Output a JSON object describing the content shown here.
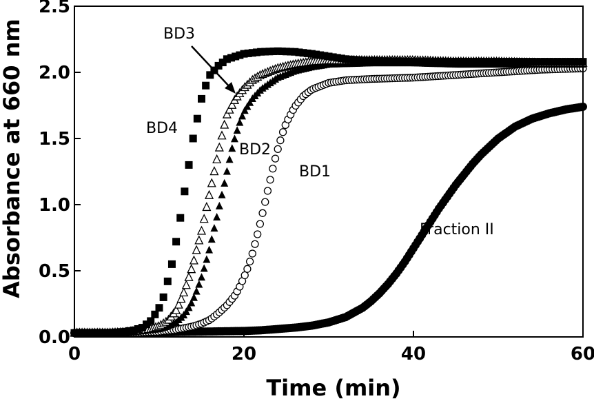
{
  "chart_data": {
    "type": "scatter",
    "xlabel": "Time (min)",
    "ylabel": "Absorbance at 660 nm",
    "xlim": [
      0,
      60
    ],
    "ylim": [
      0,
      2.5
    ],
    "xticks": [
      "0",
      "20",
      "40",
      "60"
    ],
    "yticks": [
      "0.0",
      "0.5",
      "1.0",
      "1.5",
      "2.0",
      "2.5"
    ],
    "grid": false,
    "series": [
      {
        "name": "BD4",
        "marker": "square-filled",
        "points": [
          [
            0,
            0.03
          ],
          [
            2,
            0.03
          ],
          [
            4,
            0.03
          ],
          [
            6,
            0.04
          ],
          [
            7,
            0.05
          ],
          [
            8,
            0.07
          ],
          [
            9,
            0.12
          ],
          [
            10,
            0.22
          ],
          [
            10.5,
            0.3
          ],
          [
            11,
            0.42
          ],
          [
            11.5,
            0.55
          ],
          [
            12,
            0.72
          ],
          [
            12.5,
            0.9
          ],
          [
            13,
            1.1
          ],
          [
            13.5,
            1.3
          ],
          [
            14,
            1.5
          ],
          [
            14.5,
            1.65
          ],
          [
            15,
            1.8
          ],
          [
            15.5,
            1.9
          ],
          [
            16,
            1.98
          ],
          [
            17,
            2.05
          ],
          [
            18,
            2.1
          ],
          [
            19,
            2.12
          ],
          [
            20,
            2.14
          ],
          [
            22,
            2.155
          ],
          [
            24,
            2.16
          ],
          [
            26,
            2.155
          ],
          [
            28,
            2.14
          ],
          [
            30,
            2.12
          ],
          [
            32,
            2.1
          ],
          [
            34,
            2.09
          ],
          [
            36,
            2.085
          ],
          [
            40,
            2.08
          ],
          [
            45,
            2.08
          ],
          [
            50,
            2.08
          ],
          [
            55,
            2.08
          ],
          [
            60,
            2.08
          ]
        ]
      },
      {
        "name": "BD3",
        "marker": "triangle-open",
        "points": [
          [
            0,
            0.03
          ],
          [
            2,
            0.03
          ],
          [
            4,
            0.03
          ],
          [
            6,
            0.035
          ],
          [
            8,
            0.05
          ],
          [
            9,
            0.06
          ],
          [
            10,
            0.08
          ],
          [
            11,
            0.12
          ],
          [
            12,
            0.2
          ],
          [
            12.5,
            0.27
          ],
          [
            13,
            0.35
          ],
          [
            13.5,
            0.45
          ],
          [
            14,
            0.55
          ],
          [
            14.5,
            0.68
          ],
          [
            15,
            0.8
          ],
          [
            15.5,
            0.95
          ],
          [
            16,
            1.1
          ],
          [
            16.5,
            1.25
          ],
          [
            17,
            1.4
          ],
          [
            17.5,
            1.55
          ],
          [
            18,
            1.68
          ],
          [
            19,
            1.8
          ],
          [
            20,
            1.88
          ],
          [
            21,
            1.94
          ],
          [
            22,
            1.98
          ],
          [
            24,
            2.03
          ],
          [
            26,
            2.06
          ],
          [
            28,
            2.08
          ],
          [
            30,
            2.09
          ],
          [
            35,
            2.09
          ],
          [
            40,
            2.09
          ],
          [
            45,
            2.08
          ],
          [
            50,
            2.08
          ],
          [
            55,
            2.07
          ],
          [
            60,
            2.07
          ]
        ]
      },
      {
        "name": "BD2",
        "marker": "triangle-filled",
        "points": [
          [
            0,
            0.03
          ],
          [
            2,
            0.03
          ],
          [
            4,
            0.03
          ],
          [
            6,
            0.035
          ],
          [
            8,
            0.045
          ],
          [
            10,
            0.06
          ],
          [
            11,
            0.08
          ],
          [
            12,
            0.11
          ],
          [
            13,
            0.17
          ],
          [
            13.5,
            0.22
          ],
          [
            14,
            0.28
          ],
          [
            14.5,
            0.36
          ],
          [
            15,
            0.45
          ],
          [
            15.5,
            0.56
          ],
          [
            16,
            0.68
          ],
          [
            16.5,
            0.82
          ],
          [
            17,
            0.96
          ],
          [
            17.5,
            1.1
          ],
          [
            18,
            1.25
          ],
          [
            18.5,
            1.4
          ],
          [
            19,
            1.52
          ],
          [
            19.5,
            1.62
          ],
          [
            20,
            1.7
          ],
          [
            21,
            1.8
          ],
          [
            22,
            1.87
          ],
          [
            24,
            1.96
          ],
          [
            26,
            2.01
          ],
          [
            28,
            2.04
          ],
          [
            30,
            2.06
          ],
          [
            35,
            2.07
          ],
          [
            40,
            2.07
          ],
          [
            45,
            2.06
          ],
          [
            50,
            2.06
          ],
          [
            55,
            2.06
          ],
          [
            60,
            2.06
          ]
        ]
      },
      {
        "name": "BD1",
        "marker": "circle-open",
        "points": [
          [
            0,
            0.03
          ],
          [
            2,
            0.03
          ],
          [
            4,
            0.03
          ],
          [
            6,
            0.03
          ],
          [
            8,
            0.035
          ],
          [
            10,
            0.04
          ],
          [
            12,
            0.055
          ],
          [
            14,
            0.08
          ],
          [
            15,
            0.1
          ],
          [
            16,
            0.13
          ],
          [
            17,
            0.18
          ],
          [
            18,
            0.24
          ],
          [
            19,
            0.32
          ],
          [
            19.5,
            0.38
          ],
          [
            20,
            0.45
          ],
          [
            20.5,
            0.53
          ],
          [
            21,
            0.63
          ],
          [
            21.5,
            0.75
          ],
          [
            22,
            0.88
          ],
          [
            22.5,
            1.02
          ],
          [
            23,
            1.16
          ],
          [
            23.5,
            1.3
          ],
          [
            24,
            1.42
          ],
          [
            24.5,
            1.53
          ],
          [
            25,
            1.62
          ],
          [
            26,
            1.74
          ],
          [
            27,
            1.82
          ],
          [
            28,
            1.87
          ],
          [
            30,
            1.92
          ],
          [
            32,
            1.94
          ],
          [
            35,
            1.95
          ],
          [
            40,
            1.96
          ],
          [
            45,
            1.98
          ],
          [
            50,
            2.0
          ],
          [
            55,
            2.02
          ],
          [
            60,
            2.03
          ]
        ]
      },
      {
        "name": "Fraction II",
        "marker": "circle-filled",
        "points": [
          [
            0,
            0.03
          ],
          [
            5,
            0.03
          ],
          [
            10,
            0.035
          ],
          [
            15,
            0.04
          ],
          [
            20,
            0.045
          ],
          [
            22,
            0.05
          ],
          [
            24,
            0.06
          ],
          [
            26,
            0.07
          ],
          [
            28,
            0.085
          ],
          [
            30,
            0.11
          ],
          [
            32,
            0.15
          ],
          [
            34,
            0.22
          ],
          [
            35,
            0.27
          ],
          [
            36,
            0.33
          ],
          [
            37,
            0.4
          ],
          [
            38,
            0.48
          ],
          [
            39,
            0.57
          ],
          [
            40,
            0.67
          ],
          [
            41,
            0.77
          ],
          [
            42,
            0.87
          ],
          [
            43,
            0.97
          ],
          [
            44,
            1.06
          ],
          [
            45,
            1.15
          ],
          [
            46,
            1.23
          ],
          [
            47,
            1.31
          ],
          [
            48,
            1.38
          ],
          [
            49,
            1.44
          ],
          [
            50,
            1.5
          ],
          [
            52,
            1.59
          ],
          [
            54,
            1.65
          ],
          [
            56,
            1.69
          ],
          [
            58,
            1.72
          ],
          [
            60,
            1.74
          ]
        ]
      }
    ],
    "annotations": {
      "bd3": "BD3",
      "bd4": "BD4",
      "bd2": "BD2",
      "bd1": "BD1",
      "fraction2": "Fraction II"
    }
  }
}
